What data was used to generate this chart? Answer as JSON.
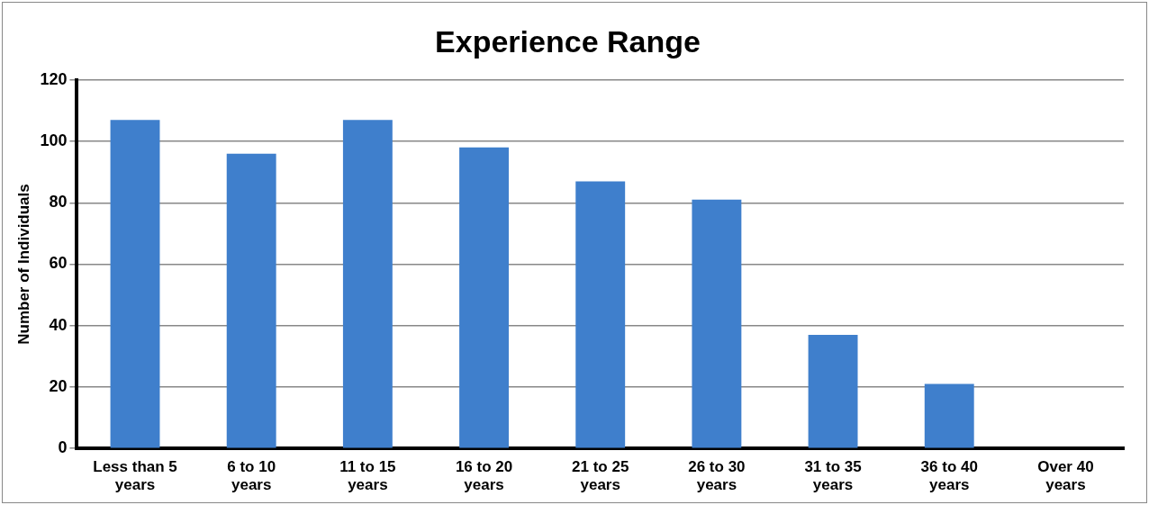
{
  "chart_data": {
    "type": "bar",
    "title": "Experience Range",
    "ylabel": "Number of Individuals",
    "categories": [
      "Less than 5 years",
      "6 to 10 years",
      "11 to 15 years",
      "16 to 20 years",
      "21 to 25 years",
      "26 to 30 years",
      "31 to 35 years",
      "36 to 40 years",
      "Over 40 years"
    ],
    "values": [
      107,
      96,
      107,
      98,
      87,
      81,
      37,
      21,
      0
    ],
    "color": "#3f7fcc",
    "ylim": [
      0,
      120
    ],
    "yticks": [
      0,
      20,
      40,
      60,
      80,
      100,
      120
    ],
    "grid": "y",
    "legend": false
  }
}
